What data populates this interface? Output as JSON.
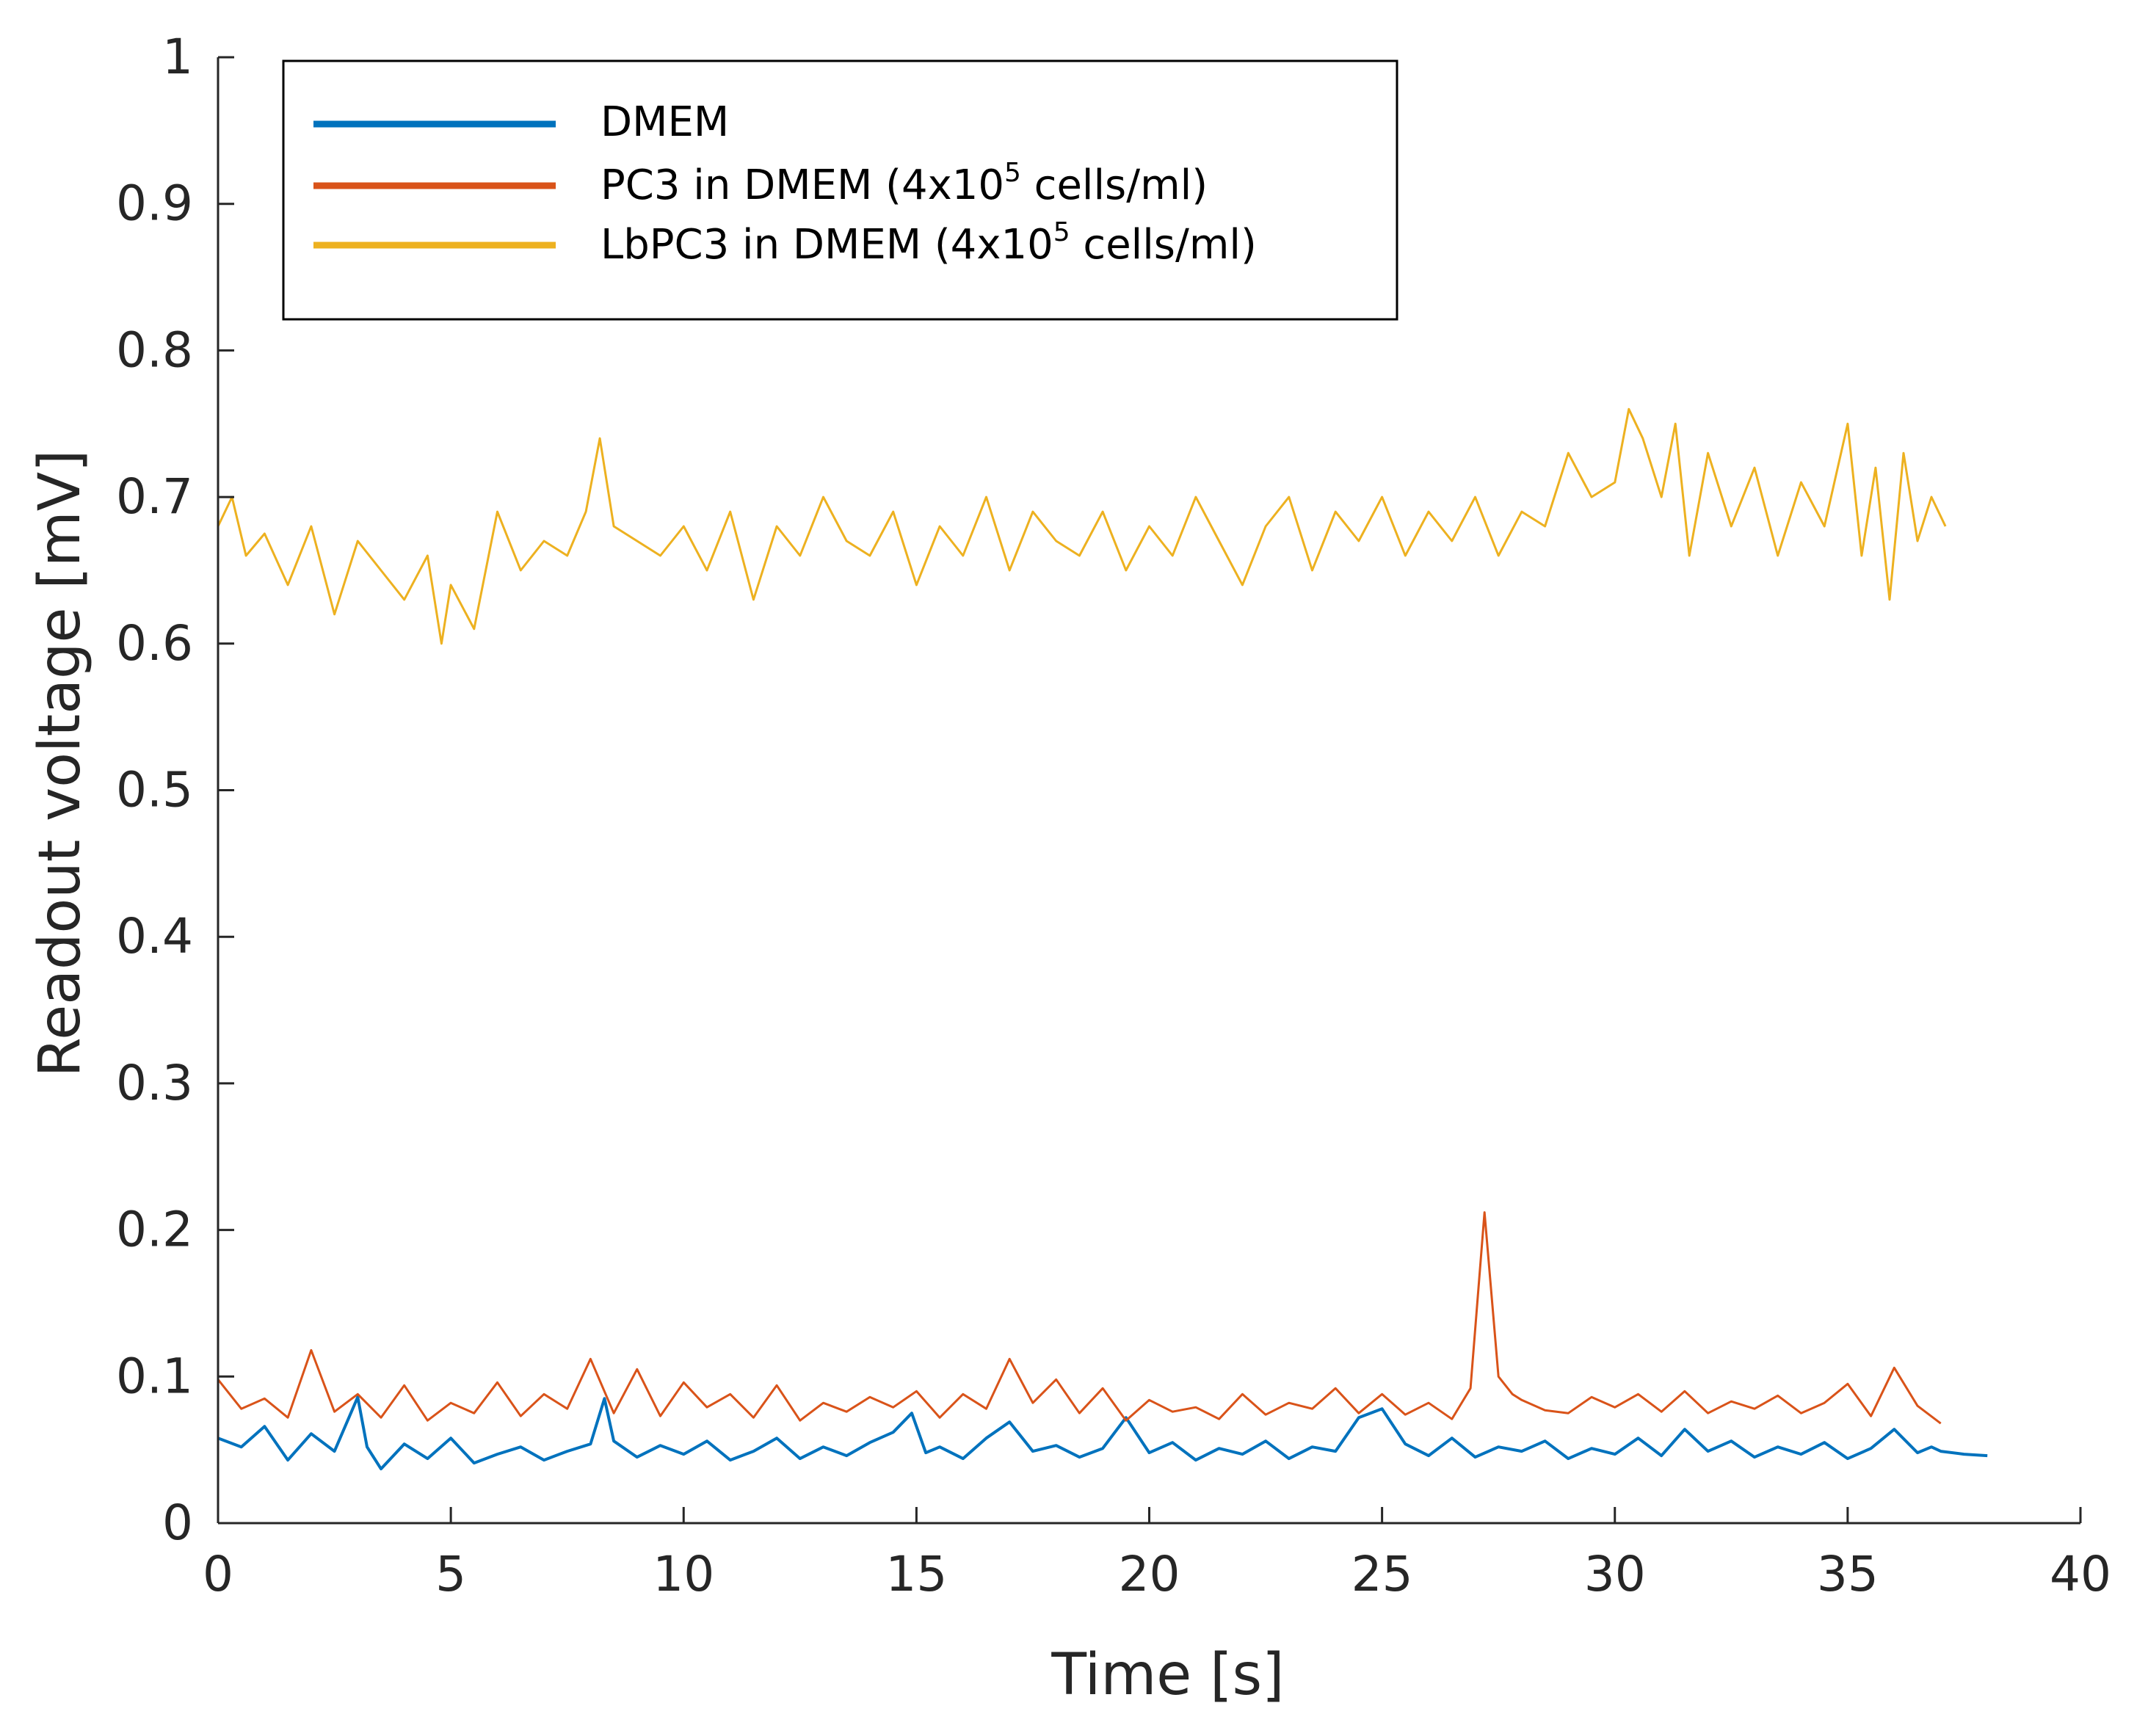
{
  "chart_data": {
    "type": "line",
    "title": "",
    "xlabel": "Time [s]",
    "ylabel": "Readout voltage [mV]",
    "xlim": [
      0,
      40
    ],
    "ylim": [
      0,
      1
    ],
    "xticks": [
      0,
      5,
      10,
      15,
      20,
      25,
      30,
      35,
      40
    ],
    "xtick_labels": [
      "0",
      "5",
      "10",
      "15",
      "20",
      "25",
      "30",
      "35",
      "40"
    ],
    "yticks": [
      0,
      0.1,
      0.2,
      0.3,
      0.4,
      0.5,
      0.6,
      0.7,
      0.8,
      0.9,
      1
    ],
    "ytick_labels": [
      "0",
      "0.1",
      "0.2",
      "0.3",
      "0.4",
      "0.5",
      "0.6",
      "0.7",
      "0.8",
      "0.9",
      "1"
    ],
    "grid": false,
    "legend": {
      "location": "top-left",
      "entries": [
        {
          "label_main": "DMEM",
          "label_sup": "",
          "label_tail": ""
        },
        {
          "label_main": "PC3 in DMEM (4x10",
          "label_sup": "5",
          "label_tail": " cells/ml)"
        },
        {
          "label_main": "LbPC3 in DMEM (4x10",
          "label_sup": "5",
          "label_tail": " cells/ml)"
        }
      ]
    },
    "series": [
      {
        "name": "DMEM",
        "color": "#0072BD",
        "x": [
          0,
          0.5,
          1.0,
          1.5,
          2.0,
          2.5,
          3.0,
          3.2,
          3.5,
          4.0,
          4.5,
          5.0,
          5.5,
          6.0,
          6.5,
          7.0,
          7.5,
          8.0,
          8.3,
          8.5,
          9.0,
          9.5,
          10.0,
          10.5,
          11.0,
          11.5,
          12.0,
          12.5,
          13.0,
          13.5,
          14.0,
          14.5,
          14.9,
          15.2,
          15.5,
          16.0,
          16.5,
          17.0,
          17.5,
          18.0,
          18.5,
          19.0,
          19.5,
          20.0,
          20.5,
          21.0,
          21.5,
          22.0,
          22.5,
          23.0,
          23.5,
          24.0,
          24.5,
          25.0,
          25.5,
          26.0,
          26.5,
          27.0,
          27.5,
          28.0,
          28.5,
          29.0,
          29.5,
          30.0,
          30.5,
          31.0,
          31.5,
          32.0,
          32.5,
          33.0,
          33.5,
          34.0,
          34.5,
          35.0,
          35.5,
          36.0,
          36.5,
          36.8,
          37.0,
          37.5,
          38.0
        ],
        "values": [
          0.058,
          0.052,
          0.066,
          0.043,
          0.061,
          0.049,
          0.086,
          0.052,
          0.037,
          0.054,
          0.044,
          0.058,
          0.041,
          0.047,
          0.052,
          0.043,
          0.049,
          0.054,
          0.085,
          0.056,
          0.045,
          0.053,
          0.047,
          0.056,
          0.043,
          0.049,
          0.058,
          0.044,
          0.052,
          0.046,
          0.055,
          0.062,
          0.075,
          0.048,
          0.052,
          0.044,
          0.058,
          0.069,
          0.049,
          0.053,
          0.045,
          0.051,
          0.072,
          0.048,
          0.055,
          0.043,
          0.051,
          0.047,
          0.056,
          0.044,
          0.052,
          0.049,
          0.072,
          0.078,
          0.054,
          0.046,
          0.058,
          0.045,
          0.052,
          0.049,
          0.056,
          0.044,
          0.051,
          0.047,
          0.058,
          0.046,
          0.064,
          0.049,
          0.056,
          0.045,
          0.052,
          0.047,
          0.055,
          0.044,
          0.051,
          0.064,
          0.048,
          0.052,
          0.049,
          0.047,
          0.046
        ]
      },
      {
        "name": "PC3 in DMEM (4x10^5 cells/ml)",
        "color": "#D95319",
        "x": [
          0,
          0.5,
          1.0,
          1.5,
          2.0,
          2.5,
          3.0,
          3.5,
          4.0,
          4.5,
          5.0,
          5.5,
          6.0,
          6.5,
          7.0,
          7.5,
          8.0,
          8.5,
          9.0,
          9.5,
          10.0,
          10.5,
          11.0,
          11.5,
          12.0,
          12.5,
          13.0,
          13.5,
          14.0,
          14.5,
          15.0,
          15.5,
          16.0,
          16.5,
          17.0,
          17.5,
          18.0,
          18.5,
          19.0,
          19.5,
          20.0,
          20.5,
          21.0,
          21.5,
          22.0,
          22.5,
          23.0,
          23.5,
          24.0,
          24.5,
          25.0,
          25.5,
          26.0,
          26.5,
          26.9,
          27.2,
          27.5,
          27.8,
          28.0,
          28.5,
          29.0,
          29.5,
          30.0,
          30.5,
          31.0,
          31.5,
          32.0,
          32.5,
          33.0,
          33.5,
          34.0,
          34.5,
          35.0,
          35.5,
          36.0,
          36.5,
          37.0
        ],
        "values": [
          0.098,
          0.078,
          0.085,
          0.072,
          0.118,
          0.076,
          0.088,
          0.072,
          0.094,
          0.07,
          0.082,
          0.075,
          0.096,
          0.073,
          0.088,
          0.078,
          0.112,
          0.075,
          0.105,
          0.073,
          0.096,
          0.079,
          0.088,
          0.072,
          0.094,
          0.07,
          0.082,
          0.076,
          0.086,
          0.079,
          0.09,
          0.072,
          0.088,
          0.078,
          0.112,
          0.082,
          0.098,
          0.075,
          0.092,
          0.07,
          0.084,
          0.076,
          0.079,
          0.071,
          0.088,
          0.074,
          0.082,
          0.078,
          0.092,
          0.075,
          0.088,
          0.074,
          0.082,
          0.071,
          0.092,
          0.212,
          0.1,
          0.088,
          0.084,
          0.077,
          0.075,
          0.086,
          0.079,
          0.088,
          0.076,
          0.09,
          0.075,
          0.083,
          0.078,
          0.087,
          0.075,
          0.082,
          0.095,
          0.073,
          0.106,
          0.08,
          0.068
        ]
      },
      {
        "name": "LbPC3 in DMEM (4x10^5 cells/ml)",
        "color": "#EDB120",
        "x": [
          0,
          0.3,
          0.6,
          1.0,
          1.5,
          2.0,
          2.5,
          3.0,
          3.5,
          4.0,
          4.5,
          4.8,
          5.0,
          5.5,
          6.0,
          6.5,
          7.0,
          7.5,
          7.9,
          8.2,
          8.5,
          9.0,
          9.5,
          10.0,
          10.5,
          11.0,
          11.5,
          12.0,
          12.5,
          13.0,
          13.5,
          14.0,
          14.5,
          15.0,
          15.5,
          16.0,
          16.5,
          17.0,
          17.5,
          18.0,
          18.5,
          19.0,
          19.5,
          20.0,
          20.5,
          21.0,
          21.5,
          22.0,
          22.5,
          23.0,
          23.5,
          24.0,
          24.5,
          25.0,
          25.5,
          26.0,
          26.5,
          27.0,
          27.5,
          28.0,
          28.5,
          29.0,
          29.5,
          30.0,
          30.3,
          30.6,
          31.0,
          31.3,
          31.6,
          32.0,
          32.5,
          33.0,
          33.5,
          34.0,
          34.5,
          35.0,
          35.3,
          35.6,
          35.9,
          36.2,
          36.5,
          36.8,
          37.1
        ],
        "values": [
          0.68,
          0.7,
          0.66,
          0.675,
          0.64,
          0.68,
          0.62,
          0.67,
          0.65,
          0.63,
          0.66,
          0.6,
          0.64,
          0.61,
          0.69,
          0.65,
          0.67,
          0.66,
          0.69,
          0.74,
          0.68,
          0.67,
          0.66,
          0.68,
          0.65,
          0.69,
          0.63,
          0.68,
          0.66,
          0.7,
          0.67,
          0.66,
          0.69,
          0.64,
          0.68,
          0.66,
          0.7,
          0.65,
          0.69,
          0.67,
          0.66,
          0.69,
          0.65,
          0.68,
          0.66,
          0.7,
          0.67,
          0.64,
          0.68,
          0.7,
          0.65,
          0.69,
          0.67,
          0.7,
          0.66,
          0.69,
          0.67,
          0.7,
          0.66,
          0.69,
          0.68,
          0.73,
          0.7,
          0.71,
          0.76,
          0.74,
          0.7,
          0.75,
          0.66,
          0.73,
          0.68,
          0.72,
          0.66,
          0.71,
          0.68,
          0.75,
          0.66,
          0.72,
          0.63,
          0.73,
          0.67,
          0.7,
          0.68
        ]
      }
    ]
  }
}
